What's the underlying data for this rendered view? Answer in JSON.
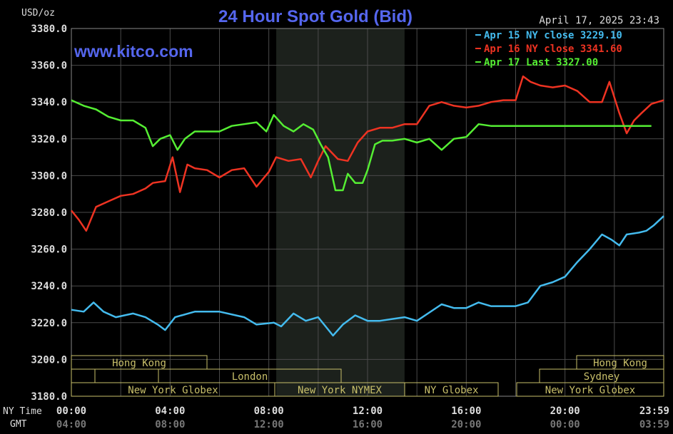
{
  "header": {
    "unit": "USD/oz",
    "title": "24 Hour Spot Gold (Bid)",
    "timestamp": "April 17, 2025 23:43",
    "website": "www.kitco.com"
  },
  "legend": [
    {
      "label": "Apr 15 NY close 3229.10",
      "color": "#44bbee"
    },
    {
      "label": "Apr 16 NY close 3341.60",
      "color": "#ee3322"
    },
    {
      "label": "Apr 17 Last 3327.00",
      "color": "#55ee33"
    }
  ],
  "colors": {
    "background": "#000000",
    "grid": "#4a4a4a",
    "axis_text": "#dddddd",
    "title": "#5566ee",
    "session_box": "#c8bf6a",
    "nymex_shade": "#1a1f1a"
  },
  "axis_labels": {
    "ny_time": "NY Time",
    "gmt": "GMT"
  },
  "sessions": {
    "row1": [
      "Hong Kong",
      "Hong Kong"
    ],
    "row2": [
      "London",
      "Sydney"
    ],
    "row3": [
      "New York Globex",
      "New York NYMEX",
      "NY Globex",
      "New York Globex"
    ]
  },
  "chart_data": {
    "type": "line",
    "title": "24 Hour Spot Gold (Bid)",
    "ylabel": "USD/oz",
    "ylim": [
      3180,
      3380
    ],
    "yticks": [
      "3380.0",
      "3360.0",
      "3340.0",
      "3320.0",
      "3300.0",
      "3280.0",
      "3260.0",
      "3240.0",
      "3220.0",
      "3200.0",
      "3180.0"
    ],
    "xlim_hours": [
      0,
      24
    ],
    "xticks_ny": [
      "00:00",
      "04:00",
      "08:00",
      "12:00",
      "16:00",
      "20:00",
      "23:59"
    ],
    "xticks_gmt": [
      "04:00",
      "08:00",
      "12:00",
      "16:00",
      "20:00",
      "00:00",
      "03:59"
    ],
    "grid": true,
    "series": [
      {
        "name": "Apr 15 NY close 3229.10",
        "color": "#44bbee",
        "x": [
          0,
          0.5,
          0.9,
          1.3,
          1.8,
          2.5,
          3.0,
          3.5,
          3.8,
          4.2,
          5.0,
          6.0,
          7.0,
          7.5,
          8.2,
          8.5,
          9.0,
          9.5,
          10.0,
          10.3,
          10.6,
          11.0,
          11.5,
          12.0,
          12.5,
          13.0,
          13.5,
          14.0,
          15.0,
          15.5,
          16.0,
          16.5,
          17.0,
          18.0,
          18.5,
          19.0,
          19.5,
          20.0,
          20.5,
          21.0,
          21.5,
          21.9,
          22.2,
          22.5,
          23.0,
          23.3,
          23.6,
          24.0
        ],
        "y": [
          3227,
          3226,
          3231,
          3226,
          3223,
          3225,
          3223,
          3219,
          3216,
          3223,
          3226,
          3226,
          3223,
          3219,
          3220,
          3218,
          3225,
          3221,
          3223,
          3218,
          3213,
          3219,
          3224,
          3221,
          3221,
          3222,
          3223,
          3221,
          3230,
          3228,
          3228,
          3231,
          3229,
          3229,
          3231,
          3240,
          3242,
          3245,
          3253,
          3260,
          3268,
          3265,
          3262,
          3268,
          3269,
          3270,
          3273,
          3278
        ]
      },
      {
        "name": "Apr 16 NY close 3341.60",
        "color": "#ee3322",
        "x": [
          0,
          0.3,
          0.6,
          1.0,
          1.5,
          2.0,
          2.5,
          3.0,
          3.3,
          3.8,
          4.1,
          4.4,
          4.7,
          5.0,
          5.5,
          6.0,
          6.5,
          7.0,
          7.5,
          8.0,
          8.3,
          8.8,
          9.3,
          9.7,
          10.0,
          10.3,
          10.8,
          11.2,
          11.6,
          12.0,
          12.5,
          13.0,
          13.5,
          14.0,
          14.5,
          15.0,
          15.5,
          16.0,
          16.5,
          17.0,
          17.5,
          18.0,
          18.3,
          18.6,
          19.0,
          19.5,
          20.0,
          20.5,
          21.0,
          21.5,
          21.8,
          22.2,
          22.5,
          22.8,
          23.1,
          23.5,
          24.0
        ],
        "y": [
          3281,
          3276,
          3270,
          3283,
          3286,
          3289,
          3290,
          3293,
          3296,
          3297,
          3310,
          3291,
          3306,
          3304,
          3303,
          3299,
          3303,
          3304,
          3294,
          3302,
          3310,
          3308,
          3309,
          3299,
          3308,
          3316,
          3309,
          3308,
          3318,
          3324,
          3326,
          3326,
          3328,
          3328,
          3338,
          3340,
          3338,
          3337,
          3338,
          3340,
          3341,
          3341,
          3354,
          3351,
          3349,
          3348,
          3349,
          3346,
          3340,
          3340,
          3351,
          3334,
          3323,
          3330,
          3334,
          3339,
          3341
        ]
      },
      {
        "name": "Apr 17 Last 3327.00",
        "color": "#55ee33",
        "x": [
          0,
          0.5,
          1.0,
          1.5,
          2.0,
          2.5,
          3.0,
          3.3,
          3.6,
          4.0,
          4.3,
          4.6,
          5.0,
          5.5,
          6.0,
          6.5,
          7.0,
          7.5,
          7.9,
          8.2,
          8.6,
          9.0,
          9.4,
          9.8,
          10.1,
          10.4,
          10.7,
          11.0,
          11.2,
          11.5,
          11.8,
          12.0,
          12.3,
          12.6,
          13.0,
          13.5,
          14.0,
          14.5,
          15.0,
          15.5,
          16.0,
          16.5,
          17.0,
          17.5,
          18.0,
          19.0,
          20.0,
          21.0,
          22.0,
          23.0,
          23.5
        ],
        "y": [
          3341,
          3338,
          3336,
          3332,
          3330,
          3330,
          3326,
          3316,
          3320,
          3322,
          3314,
          3320,
          3324,
          3324,
          3324,
          3327,
          3328,
          3329,
          3324,
          3333,
          3327,
          3324,
          3328,
          3325,
          3317,
          3310,
          3292,
          3292,
          3301,
          3296,
          3296,
          3303,
          3317,
          3319,
          3319,
          3320,
          3318,
          3320,
          3314,
          3320,
          3321,
          3328,
          3327,
          3327,
          3327,
          3327,
          3327,
          3327,
          3327,
          3327,
          3327
        ]
      }
    ]
  }
}
